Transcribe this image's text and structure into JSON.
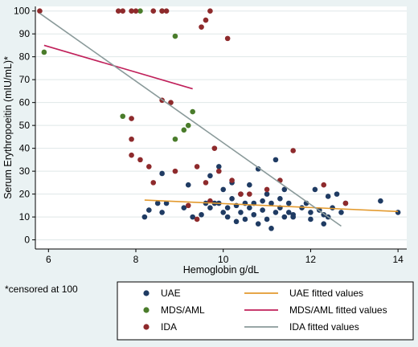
{
  "chart_data": {
    "type": "scatter",
    "title": "",
    "xlabel": "Hemoglobin g/dL",
    "ylabel": "Serum Erythropoeitin (mIU/mL)*",
    "note": "*censored at 100",
    "xlim": [
      5.7,
      14.2
    ],
    "ylim": [
      -4,
      102
    ],
    "xticks": [
      "6",
      "8",
      "10",
      "12",
      "14"
    ],
    "yticks": [
      "0",
      "10",
      "20",
      "30",
      "40",
      "50",
      "60",
      "70",
      "80",
      "90",
      "100"
    ],
    "grid": "horizontal",
    "legend_placement": "bottom",
    "colors": {
      "UAE": "#1f3b63",
      "MDS_AML": "#4a7c2b",
      "IDA": "#8e2a2c",
      "UAE_fit": "#e39a2e",
      "MDS_AML_fit": "#c0205a",
      "IDA_fit": "#8a9a9a",
      "plot_bg": "#ffffff",
      "frame_bg": "#eaf2f3",
      "grid": "#dfe7e8"
    },
    "series": [
      {
        "name": "UAE",
        "kind": "points",
        "points": [
          [
            8.2,
            10
          ],
          [
            8.3,
            13
          ],
          [
            8.5,
            16
          ],
          [
            8.6,
            29
          ],
          [
            8.6,
            12
          ],
          [
            8.7,
            16
          ],
          [
            9.1,
            14
          ],
          [
            9.2,
            24
          ],
          [
            9.3,
            10
          ],
          [
            9.5,
            11
          ],
          [
            9.6,
            16
          ],
          [
            9.7,
            14
          ],
          [
            9.7,
            28
          ],
          [
            9.8,
            16
          ],
          [
            9.9,
            32
          ],
          [
            9.9,
            16
          ],
          [
            10.0,
            12
          ],
          [
            10.0,
            22
          ],
          [
            10.1,
            14
          ],
          [
            10.1,
            10
          ],
          [
            10.2,
            25
          ],
          [
            10.2,
            18
          ],
          [
            10.3,
            8
          ],
          [
            10.3,
            15
          ],
          [
            10.4,
            12
          ],
          [
            10.4,
            20
          ],
          [
            10.5,
            16
          ],
          [
            10.5,
            9
          ],
          [
            10.6,
            14
          ],
          [
            10.6,
            24
          ],
          [
            10.7,
            11
          ],
          [
            10.7,
            16
          ],
          [
            10.8,
            31
          ],
          [
            10.8,
            7
          ],
          [
            10.9,
            17
          ],
          [
            10.9,
            13
          ],
          [
            11.0,
            20
          ],
          [
            11.0,
            9
          ],
          [
            11.1,
            16
          ],
          [
            11.1,
            5
          ],
          [
            11.2,
            35
          ],
          [
            11.2,
            12
          ],
          [
            11.3,
            18
          ],
          [
            11.3,
            14
          ],
          [
            11.4,
            22
          ],
          [
            11.4,
            10
          ],
          [
            11.5,
            16
          ],
          [
            11.5,
            12
          ],
          [
            11.6,
            11
          ],
          [
            11.6,
            10
          ],
          [
            11.8,
            14
          ],
          [
            11.9,
            16
          ],
          [
            12.0,
            9
          ],
          [
            12.0,
            12
          ],
          [
            12.1,
            22
          ],
          [
            12.2,
            13
          ],
          [
            12.3,
            11
          ],
          [
            12.3,
            7
          ],
          [
            12.4,
            19
          ],
          [
            12.4,
            10
          ],
          [
            12.5,
            14
          ],
          [
            12.6,
            20
          ],
          [
            12.7,
            12
          ],
          [
            12.8,
            16
          ],
          [
            13.6,
            17
          ],
          [
            14.0,
            12
          ]
        ]
      },
      {
        "name": "MDS/AML",
        "kind": "points",
        "points": [
          [
            5.9,
            82
          ],
          [
            7.7,
            54
          ],
          [
            8.1,
            100
          ],
          [
            8.6,
            100
          ],
          [
            8.9,
            89
          ],
          [
            8.9,
            44
          ],
          [
            9.1,
            48
          ],
          [
            9.2,
            50
          ],
          [
            9.3,
            56
          ]
        ]
      },
      {
        "name": "IDA",
        "kind": "points",
        "points": [
          [
            5.8,
            100
          ],
          [
            7.6,
            100
          ],
          [
            7.7,
            100
          ],
          [
            7.9,
            100
          ],
          [
            8.0,
            100
          ],
          [
            8.4,
            100
          ],
          [
            8.6,
            100
          ],
          [
            8.7,
            100
          ],
          [
            9.5,
            93
          ],
          [
            9.6,
            96
          ],
          [
            9.7,
            100
          ],
          [
            10.1,
            88
          ],
          [
            8.6,
            61
          ],
          [
            8.8,
            60
          ],
          [
            7.9,
            53
          ],
          [
            7.9,
            44
          ],
          [
            7.9,
            37
          ],
          [
            8.1,
            35
          ],
          [
            8.3,
            32
          ],
          [
            8.4,
            25
          ],
          [
            8.9,
            30
          ],
          [
            9.4,
            32
          ],
          [
            9.6,
            25
          ],
          [
            9.8,
            40
          ],
          [
            9.9,
            30
          ],
          [
            10.2,
            26
          ],
          [
            10.4,
            20
          ],
          [
            10.6,
            20
          ],
          [
            11.0,
            22
          ],
          [
            11.3,
            26
          ],
          [
            11.6,
            39
          ],
          [
            12.3,
            24
          ],
          [
            12.8,
            16
          ],
          [
            9.2,
            15
          ],
          [
            9.4,
            9
          ],
          [
            9.7,
            17
          ]
        ]
      },
      {
        "name": "UAE fitted values",
        "kind": "line",
        "points": [
          [
            8.2,
            17.4
          ],
          [
            14.0,
            12.4
          ]
        ]
      },
      {
        "name": "MDS/AML fitted values",
        "kind": "line",
        "points": [
          [
            5.9,
            85
          ],
          [
            9.3,
            66
          ]
        ]
      },
      {
        "name": "IDA fitted values",
        "kind": "line",
        "points": [
          [
            5.8,
            99
          ],
          [
            12.7,
            6
          ]
        ]
      }
    ],
    "legend": {
      "rows": [
        {
          "left": "UAE",
          "right": "UAE fitted values"
        },
        {
          "left": "MDS/AML",
          "right": "MDS/AML fitted values"
        },
        {
          "left": "IDA",
          "right": "IDA fitted values"
        }
      ]
    }
  }
}
